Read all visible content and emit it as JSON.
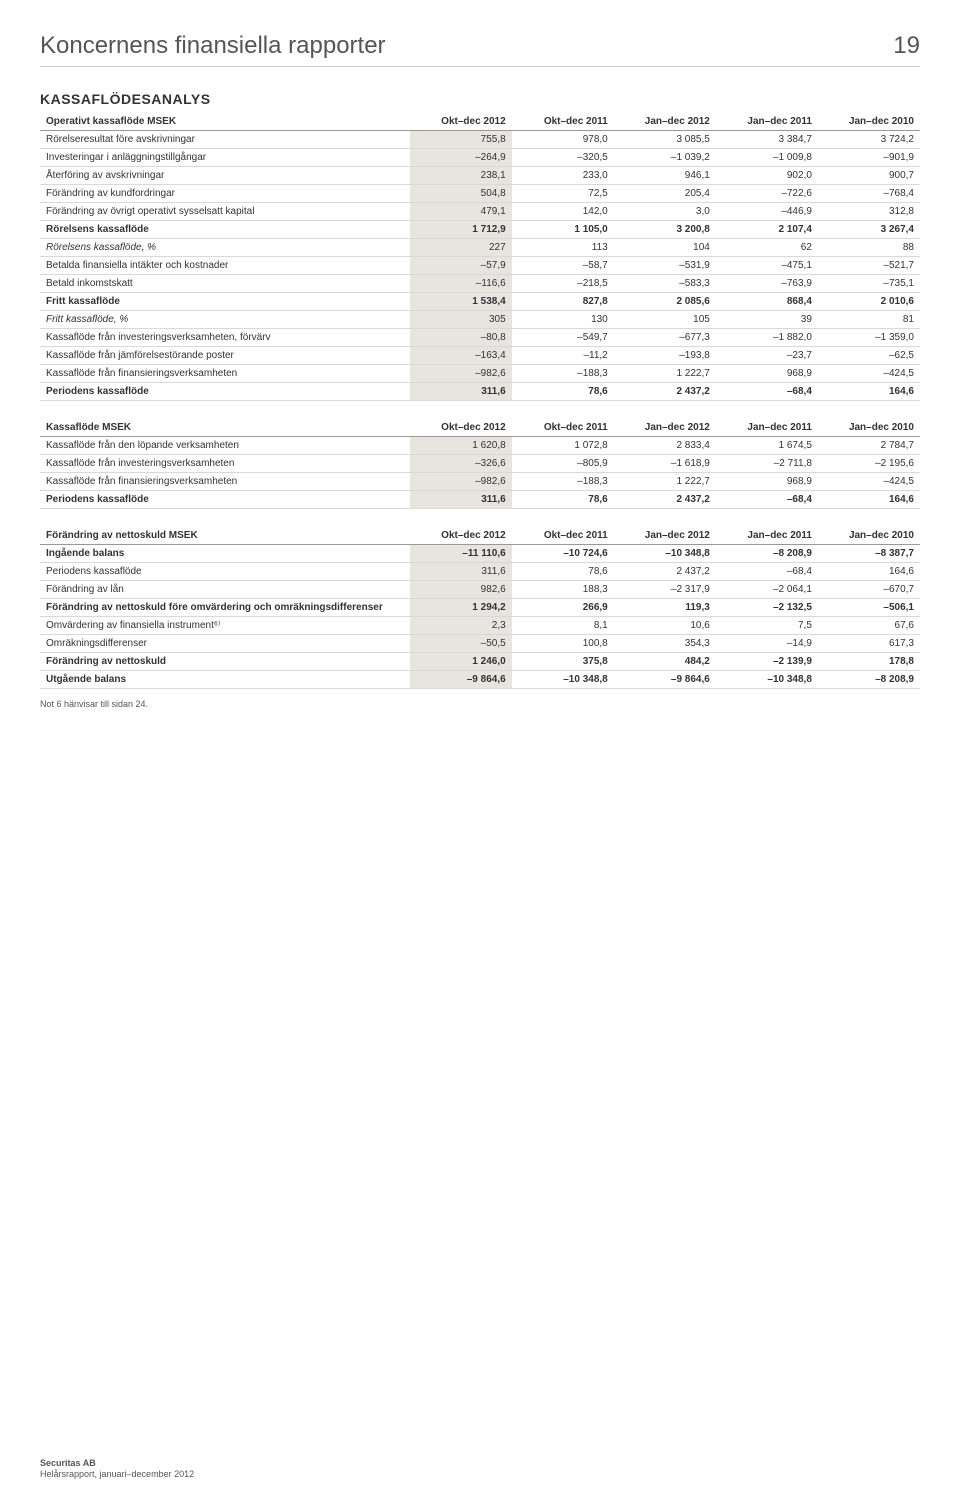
{
  "header": {
    "title": "Koncernens finansiella rapporter",
    "page_number": "19"
  },
  "section_title": "KASSAFLÖDESANALYS",
  "columns": [
    "Okt–dec 2012",
    "Okt–dec 2011",
    "Jan–dec 2012",
    "Jan–dec 2011",
    "Jan–dec 2010"
  ],
  "tableA": {
    "header_label": "Operativt kassaflöde MSEK",
    "rows": [
      {
        "label": "Rörelseresultat före avskrivningar",
        "v": [
          "755,8",
          "978,0",
          "3 085,5",
          "3 384,7",
          "3 724,2"
        ],
        "shade": true
      },
      {
        "label": "Investeringar i anläggningstillgångar",
        "v": [
          "–264,9",
          "–320,5",
          "–1 039,2",
          "–1 009,8",
          "–901,9"
        ],
        "shade": true
      },
      {
        "label": "Återföring av avskrivningar",
        "v": [
          "238,1",
          "233,0",
          "946,1",
          "902,0",
          "900,7"
        ],
        "shade": true
      },
      {
        "label": "Förändring av kundfordringar",
        "v": [
          "504,8",
          "72,5",
          "205,4",
          "–722,6",
          "–768,4"
        ],
        "shade": true
      },
      {
        "label": "Förändring av övrigt operativt sysselsatt kapital",
        "v": [
          "479,1",
          "142,0",
          "3,0",
          "–446,9",
          "312,8"
        ],
        "shade": true
      },
      {
        "label": "Rörelsens kassaflöde",
        "v": [
          "1 712,9",
          "1 105,0",
          "3 200,8",
          "2 107,4",
          "3 267,4"
        ],
        "bold": true,
        "shade": true
      },
      {
        "label": "Rörelsens kassaflöde, %",
        "v": [
          "227",
          "113",
          "104",
          "62",
          "88"
        ],
        "italic": true,
        "shade": true
      },
      {
        "label": "Betalda finansiella intäkter och kostnader",
        "v": [
          "–57,9",
          "–58,7",
          "–531,9",
          "–475,1",
          "–521,7"
        ],
        "shade": true
      },
      {
        "label": "Betald inkomstskatt",
        "v": [
          "–116,6",
          "–218,5",
          "–583,3",
          "–763,9",
          "–735,1"
        ],
        "shade": true
      },
      {
        "label": "Fritt kassaflöde",
        "v": [
          "1 538,4",
          "827,8",
          "2 085,6",
          "868,4",
          "2 010,6"
        ],
        "bold": true,
        "shade": true
      },
      {
        "label": "Fritt kassaflöde, %",
        "v": [
          "305",
          "130",
          "105",
          "39",
          "81"
        ],
        "italic": true,
        "shade": true
      },
      {
        "label": "Kassaflöde från investeringsverksamheten, förvärv",
        "v": [
          "–80,8",
          "–549,7",
          "–677,3",
          "–1 882,0",
          "–1 359,0"
        ],
        "shade": true
      },
      {
        "label": "Kassaflöde från jämförelsestörande poster",
        "v": [
          "–163,4",
          "–11,2",
          "–193,8",
          "–23,7",
          "–62,5"
        ],
        "shade": true
      },
      {
        "label": "Kassaflöde från finansieringsverksamheten",
        "v": [
          "–982,6",
          "–188,3",
          "1 222,7",
          "968,9",
          "–424,5"
        ],
        "shade": true
      },
      {
        "label": "Periodens kassaflöde",
        "v": [
          "311,6",
          "78,6",
          "2 437,2",
          "–68,4",
          "164,6"
        ],
        "bold": true,
        "shade": true
      }
    ]
  },
  "tableB": {
    "header_label": "Kassaflöde MSEK",
    "rows": [
      {
        "label": "Kassaflöde från den löpande verksamheten",
        "v": [
          "1 620,8",
          "1 072,8",
          "2 833,4",
          "1 674,5",
          "2 784,7"
        ],
        "shade": true
      },
      {
        "label": "Kassaflöde från investeringsverksamheten",
        "v": [
          "–326,6",
          "–805,9",
          "–1 618,9",
          "–2 711,8",
          "–2 195,6"
        ],
        "shade": true
      },
      {
        "label": "Kassaflöde från finansieringsverksamheten",
        "v": [
          "–982,6",
          "–188,3",
          "1 222,7",
          "968,9",
          "–424,5"
        ],
        "shade": true
      },
      {
        "label": "Periodens kassaflöde",
        "v": [
          "311,6",
          "78,6",
          "2 437,2",
          "–68,4",
          "164,6"
        ],
        "bold": true,
        "shade": true
      }
    ]
  },
  "tableC": {
    "header_label": "Förändring av nettoskuld MSEK",
    "rows": [
      {
        "label": "Ingående balans",
        "v": [
          "–11 110,6",
          "–10 724,6",
          "–10 348,8",
          "–8 208,9",
          "–8 387,7"
        ],
        "bold": true,
        "shade": true
      },
      {
        "label": "Periodens kassaflöde",
        "v": [
          "311,6",
          "78,6",
          "2 437,2",
          "–68,4",
          "164,6"
        ],
        "shade": true
      },
      {
        "label": "Förändring av lån",
        "v": [
          "982,6",
          "188,3",
          "–2 317,9",
          "–2 064,1",
          "–670,7"
        ],
        "shade": true
      },
      {
        "label": "Förändring av nettoskuld före omvärdering och omräkningsdifferenser",
        "v": [
          "1 294,2",
          "266,9",
          "119,3",
          "–2 132,5",
          "–506,1"
        ],
        "bold": true,
        "shade": true
      },
      {
        "label": "Omvärdering av finansiella instrument⁶⁾",
        "v": [
          "2,3",
          "8,1",
          "10,6",
          "7,5",
          "67,6"
        ],
        "shade": true
      },
      {
        "label": "Omräkningsdifferenser",
        "v": [
          "–50,5",
          "100,8",
          "354,3",
          "–14,9",
          "617,3"
        ],
        "shade": true
      },
      {
        "label": "Förändring av nettoskuld",
        "v": [
          "1 246,0",
          "375,8",
          "484,2",
          "–2 139,9",
          "178,8"
        ],
        "bold": true,
        "shade": true
      },
      {
        "label": "Utgående balans",
        "v": [
          "–9 864,6",
          "–10 348,8",
          "–9 864,6",
          "–10 348,8",
          "–8 208,9"
        ],
        "bold": true,
        "shade": true
      }
    ]
  },
  "footnote": "Not 6 hänvisar till sidan 24.",
  "footer": {
    "company": "Securitas AB",
    "line2": "Helårsrapport, januari–december 2012"
  }
}
